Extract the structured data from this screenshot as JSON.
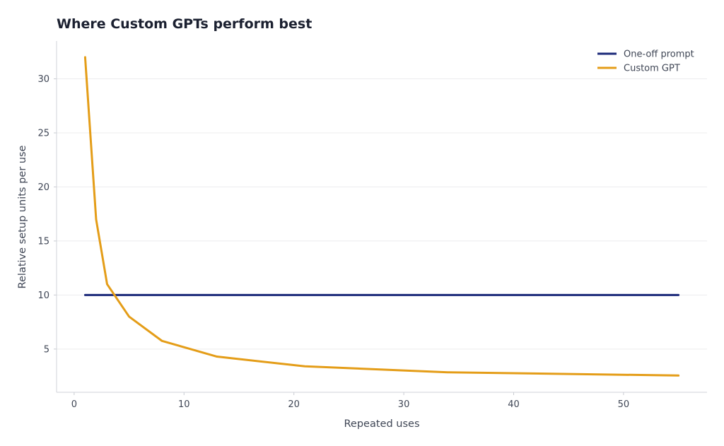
{
  "chart_data": {
    "type": "line",
    "title": "Where Custom GPTs perform best",
    "xlabel": "Repeated uses",
    "ylabel": "Relative setup units per use",
    "xlim": [
      -1.6,
      57.6
    ],
    "ylim": [
      1.0,
      33.5
    ],
    "xticks": [
      0,
      10,
      20,
      30,
      40,
      50
    ],
    "yticks": [
      5,
      10,
      15,
      20,
      25,
      30
    ],
    "grid": "horizontal",
    "legend_position": "top-right",
    "series": [
      {
        "name": "One-off prompt",
        "color": "#1c2a7a",
        "points": [
          [
            1,
            10
          ],
          [
            55,
            10
          ]
        ]
      },
      {
        "name": "Custom GPT",
        "color": "#e49d18",
        "points": [
          [
            1,
            32.0
          ],
          [
            2,
            17.0
          ],
          [
            3,
            11.0
          ],
          [
            5,
            8.0
          ],
          [
            8,
            5.75
          ],
          [
            13,
            4.3
          ],
          [
            21,
            3.4
          ],
          [
            34,
            2.85
          ],
          [
            55,
            2.55
          ]
        ]
      }
    ]
  }
}
